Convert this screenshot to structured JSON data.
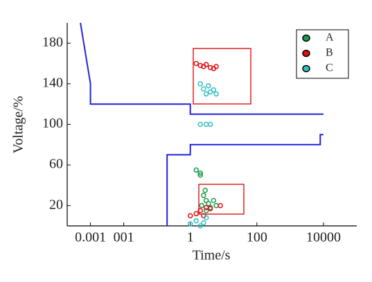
{
  "chart_data": {
    "type": "scatter",
    "x_label": "Time/s",
    "y_label": "Voltage/%",
    "xlim": [
      0.0002,
      100000
    ],
    "ylim": [
      0,
      200
    ],
    "xscale": "log",
    "xticks": [
      0.001,
      {
        "value": 0.01,
        "label": "001"
      },
      1,
      100,
      10000
    ],
    "yticks": [
      20,
      60,
      100,
      140,
      180
    ],
    "legend": "upper right",
    "lines": [
      {
        "color": "#2020e0",
        "x": [
          0.0005,
          0.001,
          0.001,
          1,
          1,
          10000
        ],
        "y": [
          200,
          140,
          120,
          120,
          110,
          110
        ]
      },
      {
        "color": "#2020e0",
        "x": [
          0.2,
          0.2,
          1,
          1,
          8000,
          8000,
          10000
        ],
        "y": [
          0,
          70,
          70,
          80,
          80,
          90,
          90
        ]
      }
    ],
    "series": [
      {
        "name": "A",
        "color": "#1a9a4a",
        "x": [
          1.5,
          2,
          2.5,
          3,
          2.2,
          3.5,
          4,
          5,
          2.8,
          6,
          3,
          2
        ],
        "values": [
          55,
          50,
          30,
          25,
          20,
          22,
          18,
          25,
          35,
          20,
          15,
          52
        ]
      },
      {
        "name": "B",
        "color": "#e01010",
        "x": [
          1.5,
          2,
          2.5,
          3,
          4,
          5,
          6,
          2,
          3,
          8,
          1,
          1.5,
          2.5,
          4
        ],
        "values": [
          160,
          158,
          157,
          159,
          156,
          155,
          157,
          15,
          18,
          20,
          10,
          12,
          10,
          17
        ]
      },
      {
        "name": "C",
        "color": "#30c0c0",
        "x": [
          2,
          2.5,
          3,
          3.5,
          4,
          5,
          6,
          2,
          3,
          4,
          1,
          1.5,
          2,
          2.5,
          3
        ],
        "values": [
          140,
          135,
          130,
          138,
          132,
          134,
          130,
          100,
          100,
          100,
          2,
          5,
          0,
          3,
          8
        ]
      }
    ]
  }
}
